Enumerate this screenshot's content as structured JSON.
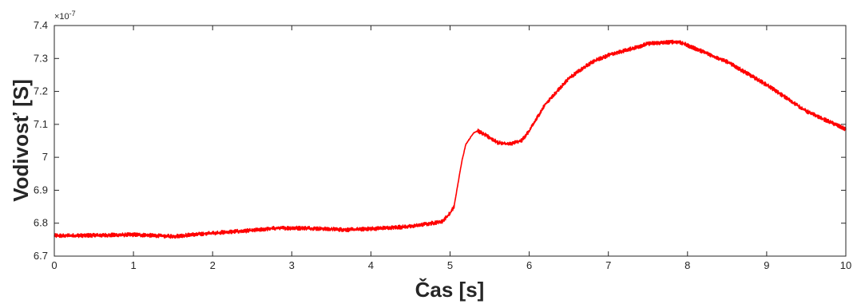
{
  "chart_data": {
    "type": "line",
    "title": "",
    "xlabel": "Čas [s]",
    "ylabel": "Vodivosť [S]",
    "y_multiplier_label": "×10",
    "y_multiplier_exponent": "-7",
    "xlim": [
      0,
      10
    ],
    "ylim": [
      6.7,
      7.4
    ],
    "x_ticks": [
      "0",
      "1",
      "2",
      "3",
      "4",
      "5",
      "6",
      "7",
      "8",
      "9",
      "10"
    ],
    "y_ticks": [
      "6.7",
      "6.8",
      "6.9",
      "7",
      "7.1",
      "7.2",
      "7.3",
      "7.4"
    ],
    "grid": false,
    "legend": "none",
    "series": [
      {
        "color": "#ff0000",
        "noise_amplitude": 0.006,
        "x": [
          0,
          0.5,
          1.0,
          1.5,
          2.0,
          2.5,
          2.8,
          3.2,
          3.7,
          4.0,
          4.5,
          4.9,
          5.0,
          5.05,
          5.1,
          5.15,
          5.2,
          5.3,
          5.35,
          5.5,
          5.6,
          5.75,
          5.9,
          6.0,
          6.2,
          6.5,
          6.8,
          7.0,
          7.3,
          7.5,
          7.8,
          7.9,
          8.0,
          8.5,
          9.0,
          9.5,
          10.0
        ],
        "y": [
          6.762,
          6.763,
          6.765,
          6.76,
          6.77,
          6.778,
          6.785,
          6.785,
          6.78,
          6.783,
          6.79,
          6.805,
          6.83,
          6.85,
          6.92,
          6.99,
          7.04,
          7.075,
          7.08,
          7.06,
          7.045,
          7.04,
          7.05,
          7.08,
          7.16,
          7.24,
          7.29,
          7.31,
          7.33,
          7.345,
          7.35,
          7.35,
          7.34,
          7.29,
          7.22,
          7.14,
          7.085
        ]
      }
    ]
  }
}
